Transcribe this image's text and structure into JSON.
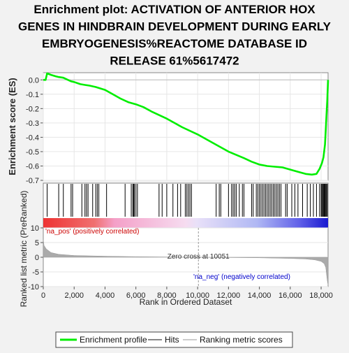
{
  "chart_data": {
    "type": "line",
    "title_lines": [
      "Enrichment plot: ACTIVATION OF ANTERIOR HOX",
      "GENES IN HINDBRAIN DEVELOPMENT DURING EARLY",
      "EMBRYOGENESIS%REACTOME DATABASE ID",
      "RELEASE 61%5617472"
    ],
    "colors": {
      "es_line": "#00ee00",
      "hits": "#000000",
      "metric_fill": "#aaaaaa",
      "pos_label": "#cc0000",
      "neg_label": "#0000cc",
      "zero_line": "#999999"
    },
    "es_panel": {
      "ylabel": "Enrichment score (ES)",
      "ylim": [
        -0.7,
        0.05
      ],
      "yticks": [
        0.0,
        -0.1,
        -0.2,
        -0.3,
        -0.4,
        -0.5,
        -0.6,
        -0.7
      ],
      "ytick_labels": [
        "0.0",
        "-0.1",
        "-0.2",
        "-0.3",
        "-0.4",
        "-0.5",
        "-0.6",
        "-0.7"
      ],
      "series": [
        {
          "x": [
            0,
            150,
            250,
            500,
            800,
            1000,
            1300,
            1600,
            1800,
            2000,
            2400,
            2700,
            3000,
            3400,
            4000,
            4500,
            5000,
            5500,
            6000,
            6500,
            7000,
            8000,
            9000,
            10000,
            11000,
            12000,
            13000,
            13500,
            14000,
            14500,
            15000,
            15500,
            16000,
            16500,
            17000,
            17400,
            17700,
            17900,
            18050,
            18150,
            18250,
            18300,
            18350,
            18400,
            18450
          ],
          "y": [
            0.0,
            0.0,
            0.045,
            0.035,
            0.025,
            0.02,
            0.015,
            0.0,
            -0.01,
            -0.015,
            -0.03,
            -0.035,
            -0.04,
            -0.05,
            -0.07,
            -0.1,
            -0.13,
            -0.155,
            -0.17,
            -0.19,
            -0.22,
            -0.27,
            -0.33,
            -0.38,
            -0.44,
            -0.5,
            -0.545,
            -0.57,
            -0.59,
            -0.6,
            -0.605,
            -0.61,
            -0.625,
            -0.64,
            -0.655,
            -0.66,
            -0.655,
            -0.62,
            -0.58,
            -0.54,
            -0.45,
            -0.35,
            -0.24,
            -0.14,
            0.0
          ]
        }
      ]
    },
    "hits_x": [
      250,
      1000,
      1300,
      1800,
      1900,
      2500,
      2700,
      2800,
      2900,
      3200,
      3400,
      3500,
      3600,
      4100,
      5300,
      5700,
      5800,
      5850,
      5900,
      6000,
      6100,
      7500,
      7700,
      8000,
      8400,
      8700,
      8900,
      9200,
      9300,
      9400,
      9500,
      9600,
      11200,
      11400,
      11500,
      12000,
      12200,
      12300,
      12400,
      12500,
      12700,
      12900,
      13000,
      13500,
      13600,
      13800,
      13900,
      14000,
      14100,
      14200,
      14300,
      14400,
      14500,
      14600,
      14700,
      14800,
      14900,
      15000,
      15100,
      15200,
      15300,
      15400,
      15700,
      15800,
      16100,
      16300,
      16500,
      16800,
      17100,
      17300,
      17500,
      17700,
      17900,
      18000,
      18050,
      18100,
      18150,
      18200,
      18250,
      18300,
      18350,
      18400
    ],
    "metric_panel": {
      "ylabel": "Ranked list metric (PreRanked)",
      "ylim": [
        -10,
        10
      ],
      "yticks": [
        10,
        5,
        0,
        -5,
        -10
      ],
      "ytick_labels": [
        "10",
        "5",
        "0",
        "-5",
        "-10"
      ],
      "x": [
        0,
        50,
        200,
        500,
        1000,
        2000,
        4000,
        6000,
        8000,
        10051,
        12000,
        14000,
        16000,
        17000,
        17600,
        18000,
        18200,
        18300,
        18400,
        18450
      ],
      "y": [
        6.0,
        4.0,
        2.8,
        1.6,
        1.0,
        0.6,
        0.35,
        0.2,
        0.1,
        0.0,
        -0.1,
        -0.2,
        -0.4,
        -0.6,
        -0.9,
        -1.4,
        -2.2,
        -3.5,
        -8.0,
        -9.5
      ],
      "pos_label": "'na_pos' (positively correlated)",
      "neg_label": "'na_neg' (negatively correlated)",
      "zero_cross_label": "Zero cross at 10051",
      "zero_cross_x": 10051
    },
    "xaxis": {
      "xlabel": "Rank in Ordered Dataset",
      "xlim": [
        0,
        18450
      ],
      "xticks": [
        0,
        2000,
        4000,
        6000,
        8000,
        10000,
        12000,
        14000,
        16000,
        18000
      ],
      "xtick_labels": [
        "0",
        "2,000",
        "4,000",
        "6,000",
        "8,000",
        "10,000",
        "12,000",
        "14,000",
        "16,000",
        "18,000"
      ]
    },
    "legend": {
      "placement": "bottom",
      "entries": [
        {
          "label": "Enrichment profile",
          "kind": "line",
          "color": "#00ee00"
        },
        {
          "label": "Hits",
          "kind": "line",
          "color": "#888888"
        },
        {
          "label": "Ranking metric scores",
          "kind": "line",
          "color": "#cccccc"
        }
      ]
    }
  }
}
